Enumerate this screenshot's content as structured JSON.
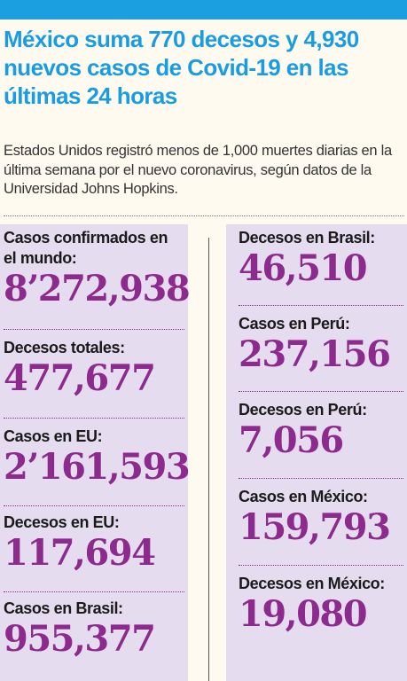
{
  "headline": "México suma 770 decesos y 4,930 nuevos casos de Covid-19 en las últimas 24 horas",
  "dek": "Estados Unidos registró menos de 1,000 muertes diarias en la última semana por el nuevo coronavirus, según datos de la Universidad Johns Hopkins.",
  "colors": {
    "accent_blue": "#1b9fe0",
    "number_purple": "#8d2a8d",
    "panel_lavender": "#e6dcef"
  },
  "left_stats": [
    {
      "label": "Casos confirmados en el mundo:",
      "value": "8’272,938"
    },
    {
      "label": "Decesos totales:",
      "value": "477,677"
    },
    {
      "label": "Casos en EU:",
      "value": "2’161,593"
    },
    {
      "label": "Decesos en EU:",
      "value": "117,694"
    },
    {
      "label": "Casos en Brasil:",
      "value": "955,377"
    }
  ],
  "right_stats": [
    {
      "label": "Decesos en Brasil:",
      "value": "46,510"
    },
    {
      "label": "Casos en Perú:",
      "value": "237,156"
    },
    {
      "label": "Decesos en Perú:",
      "value": "7,056"
    },
    {
      "label": "Casos en México:",
      "value": "159,793"
    },
    {
      "label": "Decesos en México:",
      "value": "19,080"
    }
  ]
}
